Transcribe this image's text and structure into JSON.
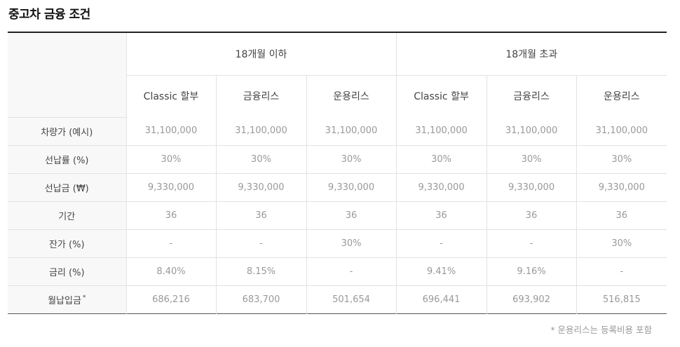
{
  "title": "중고차 금융 조건",
  "groups": [
    "18개월 이하",
    "18개월 초과"
  ],
  "products": [
    "Classic 할부",
    "금융리스",
    "운용리스",
    "Classic 할부",
    "금융리스",
    "운용리스"
  ],
  "rows": [
    {
      "label": "차량가 (예시)",
      "values": [
        "31,100,000",
        "31,100,000",
        "31,100,000",
        "31,100,000",
        "31,100,000",
        "31,100,000"
      ]
    },
    {
      "label": "선납률 (%)",
      "values": [
        "30%",
        "30%",
        "30%",
        "30%",
        "30%",
        "30%"
      ]
    },
    {
      "label": "선납금 (₩)",
      "values": [
        "9,330,000",
        "9,330,000",
        "9,330,000",
        "9,330,000",
        "9,330,000",
        "9,330,000"
      ]
    },
    {
      "label": "기간",
      "values": [
        "36",
        "36",
        "36",
        "36",
        "36",
        "36"
      ]
    },
    {
      "label": "잔가 (%)",
      "values": [
        "-",
        "-",
        "30%",
        "-",
        "-",
        "30%"
      ]
    },
    {
      "label": "금리 (%)",
      "values": [
        "8.40%",
        "8.15%",
        "-",
        "9.41%",
        "9.16%",
        "-"
      ]
    },
    {
      "label": "월납입금",
      "sup": "*",
      "values": [
        "686,216",
        "683,700",
        "501,654",
        "696,441",
        "693,902",
        "516,815"
      ]
    }
  ],
  "footnote": "* 운용리스는 등록비용 포함"
}
